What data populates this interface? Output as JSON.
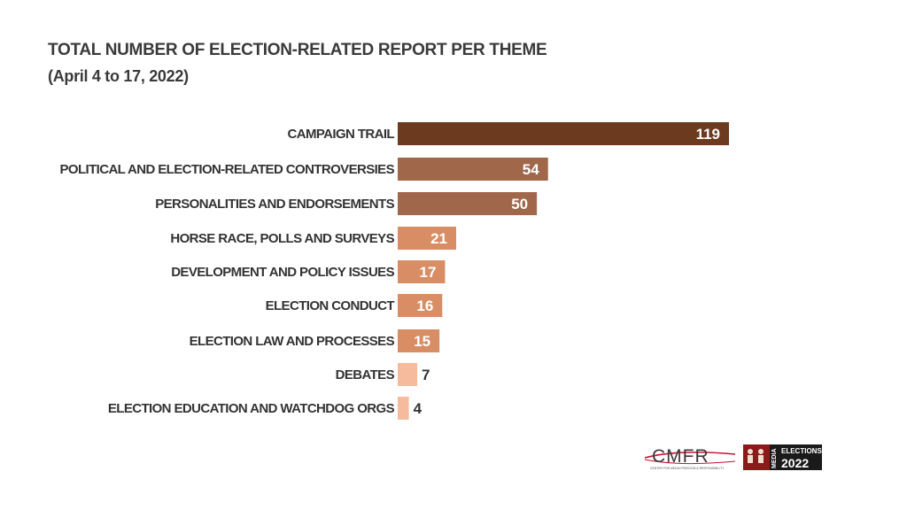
{
  "chart_data": {
    "type": "bar",
    "orientation": "horizontal",
    "title": "TOTAL NUMBER OF ELECTION-RELATED REPORT PER THEME",
    "subtitle": "(April 4 to 17, 2022)",
    "categories": [
      "CAMPAIGN TRAIL",
      "POLITICAL AND ELECTION-RELATED CONTROVERSIES",
      "PERSONALITIES AND ENDORSEMENTS",
      "HORSE RACE, POLLS AND SURVEYS",
      "DEVELOPMENT AND POLICY ISSUES",
      "ELECTION CONDUCT",
      "ELECTION LAW AND PROCESSES",
      "DEBATES",
      "ELECTION EDUCATION AND WATCHDOG ORGS"
    ],
    "values": [
      119,
      54,
      50,
      21,
      17,
      16,
      15,
      7,
      4
    ],
    "bar_colors": [
      "#6b3a1f",
      "#a0674a",
      "#a0674a",
      "#d98d64",
      "#d98d64",
      "#d98d64",
      "#d98d64",
      "#f5bb9c",
      "#f5bb9c"
    ],
    "value_label_colors": [
      "#ffffff",
      "#ffffff",
      "#ffffff",
      "#ffffff",
      "#ffffff",
      "#ffffff",
      "#ffffff",
      "#333333",
      "#333333"
    ],
    "xlim": [
      0,
      119
    ],
    "grid": false,
    "legend": "none"
  },
  "logos": {
    "cmfr_text": "CMFR",
    "cmfr_subtext": "CENTER FOR MEDIA FREEDOM & RESPONSIBILITY",
    "media_text": "MEDIA",
    "elections_text": "ELECTIONS",
    "year_text": "2022"
  }
}
